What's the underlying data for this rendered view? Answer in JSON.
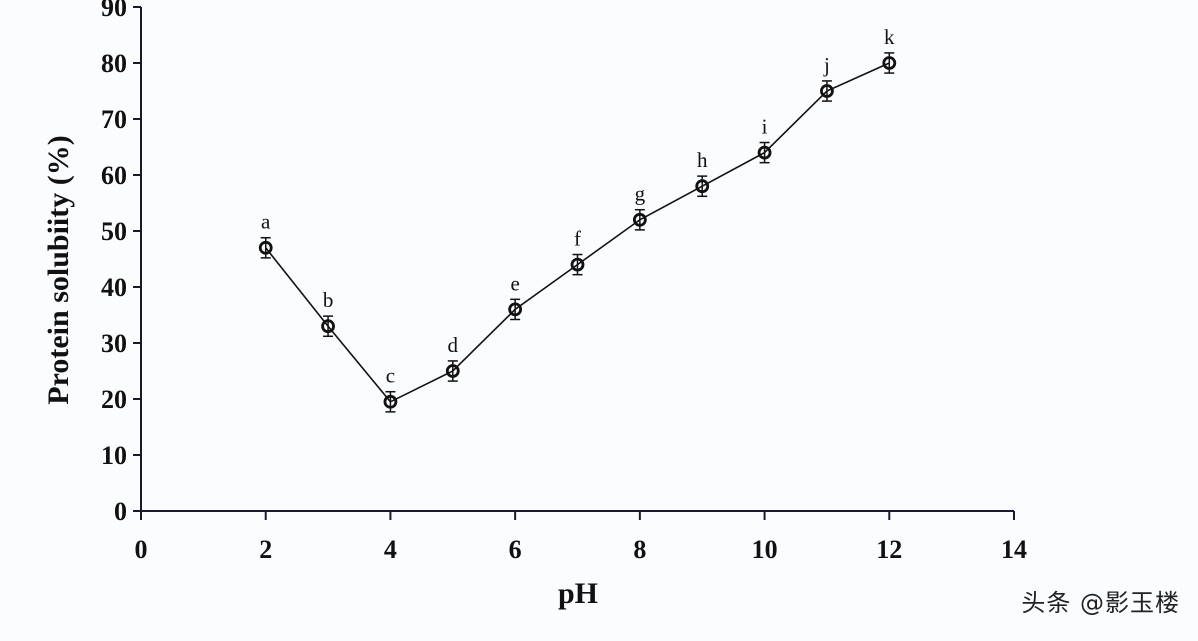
{
  "chart_data": {
    "type": "line",
    "title": "",
    "xlabel": "pH",
    "ylabel": "Protein solubiity  (%)",
    "xlim": [
      0,
      14
    ],
    "ylim": [
      0,
      90
    ],
    "x_ticks": [
      0,
      2,
      4,
      6,
      8,
      10,
      12,
      14
    ],
    "y_ticks": [
      0,
      10,
      20,
      30,
      40,
      50,
      60,
      70,
      80,
      90
    ],
    "grid": false,
    "legend": null,
    "series": [
      {
        "name": "Protein solubility",
        "marker": "open-circle",
        "error_bars": true,
        "x": [
          2,
          3,
          4,
          5,
          6,
          7,
          8,
          9,
          10,
          11,
          12
        ],
        "values": [
          47,
          33,
          19.5,
          25,
          36,
          44,
          52,
          58,
          64,
          75,
          80
        ],
        "error": [
          1.8,
          1.8,
          1.8,
          1.8,
          1.8,
          1.8,
          1.8,
          1.8,
          1.8,
          1.8,
          1.8
        ],
        "annotations": [
          "a",
          "b",
          "c",
          "d",
          "e",
          "f",
          "g",
          "h",
          "i",
          "j",
          "k"
        ]
      }
    ]
  },
  "watermark": "头条 @影玉楼",
  "colors": {
    "line": "#111111",
    "axis": "#1a1a2e",
    "background": "#fbfcfe"
  }
}
